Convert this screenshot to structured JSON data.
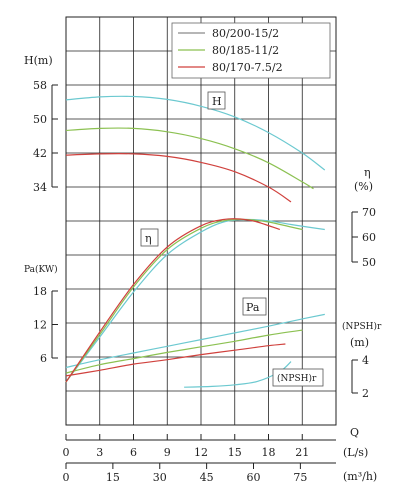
{
  "chart_data": {
    "type": "line",
    "x_label": "Q",
    "x_unit": "(L/s)",
    "x_ticks": [
      "0",
      "3",
      "6",
      "9",
      "12",
      "15",
      "18",
      "21"
    ],
    "x2_unit": "(m³/h)",
    "x2_ticks": [
      "0",
      "15",
      "30",
      "45",
      "60",
      "75"
    ],
    "head_axis": {
      "label": "H(m)",
      "ticks": [
        "58",
        "50",
        "42",
        "34"
      ]
    },
    "eff_axis": {
      "label": "η",
      "unit": "(%)",
      "ticks": [
        "70",
        "60",
        "50"
      ]
    },
    "power_axis": {
      "label": "Pa(KW)",
      "ticks": [
        "18",
        "12",
        "6"
      ]
    },
    "npsh_axis": {
      "label": "(NPSH)r",
      "unit": "(m)",
      "ticks": [
        "4",
        "2"
      ]
    },
    "curve_tags": {
      "head": "H",
      "efficiency": "η",
      "power": "Pa",
      "npsh": "(NPSH)r"
    },
    "legend": [
      {
        "name": "80/200-15/2",
        "color": "#8a8a8a"
      },
      {
        "name": "80/185-11/2",
        "color": "#8cc152"
      },
      {
        "name": "80/170-7.5/2",
        "color": "#d0413d"
      }
    ],
    "npsh_color": "#6cc9d0",
    "series": [
      {
        "name": "80/200-15/2",
        "color": "#6cc9d0",
        "head": [
          [
            0,
            54.5
          ],
          [
            3,
            55.2
          ],
          [
            6,
            55.3
          ],
          [
            9,
            54.6
          ],
          [
            12,
            53
          ],
          [
            15,
            50.5
          ],
          [
            18,
            46.8
          ],
          [
            21,
            42
          ],
          [
            23,
            38
          ]
        ],
        "efficiency": [
          [
            0,
            2
          ],
          [
            3,
            20
          ],
          [
            6,
            38
          ],
          [
            9,
            53
          ],
          [
            12,
            62
          ],
          [
            14,
            66
          ],
          [
            16,
            67
          ],
          [
            18,
            66.5
          ],
          [
            20,
            65
          ],
          [
            23,
            63
          ]
        ],
        "power": [
          [
            0,
            4.3
          ],
          [
            3,
            5.7
          ],
          [
            6,
            6.9
          ],
          [
            9,
            8.1
          ],
          [
            12,
            9.3
          ],
          [
            15,
            10.5
          ],
          [
            18,
            11.7
          ],
          [
            21,
            13
          ],
          [
            23,
            13.8
          ]
        ],
        "npsh": [
          [
            10.5,
            2.35
          ],
          [
            13,
            2.4
          ],
          [
            15,
            2.5
          ],
          [
            17,
            2.7
          ],
          [
            19,
            3.3
          ],
          [
            20,
            3.9
          ]
        ]
      },
      {
        "name": "80/185-11/2",
        "color": "#8cc152",
        "head": [
          [
            0,
            47.3
          ],
          [
            3,
            47.8
          ],
          [
            6,
            47.8
          ],
          [
            9,
            47
          ],
          [
            12,
            45.4
          ],
          [
            15,
            43
          ],
          [
            18,
            39.7
          ],
          [
            21,
            35.2
          ],
          [
            22,
            33.6
          ]
        ],
        "efficiency": [
          [
            0,
            2
          ],
          [
            3,
            21
          ],
          [
            6,
            40
          ],
          [
            9,
            55
          ],
          [
            12,
            63.5
          ],
          [
            14,
            66.5
          ],
          [
            16,
            67
          ],
          [
            18,
            66
          ],
          [
            20,
            64
          ],
          [
            21,
            63
          ]
        ],
        "power": [
          [
            0,
            3.3
          ],
          [
            3,
            4.8
          ],
          [
            6,
            5.9
          ],
          [
            9,
            7
          ],
          [
            12,
            8
          ],
          [
            15,
            9
          ],
          [
            18,
            10.1
          ],
          [
            21,
            11
          ]
        ]
      },
      {
        "name": "80/170-7.5/2",
        "color": "#d0413d",
        "head": [
          [
            0,
            41.5
          ],
          [
            3,
            41.8
          ],
          [
            6,
            41.8
          ],
          [
            9,
            41.2
          ],
          [
            12,
            39.8
          ],
          [
            15,
            37.6
          ],
          [
            18,
            34
          ],
          [
            20,
            30.5
          ]
        ],
        "efficiency": [
          [
            0,
            2
          ],
          [
            3,
            22
          ],
          [
            6,
            41
          ],
          [
            9,
            56
          ],
          [
            12,
            64.5
          ],
          [
            14,
            67
          ],
          [
            15.5,
            67.2
          ],
          [
            17,
            66
          ],
          [
            19,
            63
          ]
        ],
        "power": [
          [
            0,
            2.8
          ],
          [
            3,
            3.8
          ],
          [
            6,
            4.9
          ],
          [
            9,
            5.7
          ],
          [
            12,
            6.6
          ],
          [
            15,
            7.4
          ],
          [
            18,
            8.2
          ],
          [
            19.5,
            8.5
          ]
        ]
      }
    ]
  }
}
